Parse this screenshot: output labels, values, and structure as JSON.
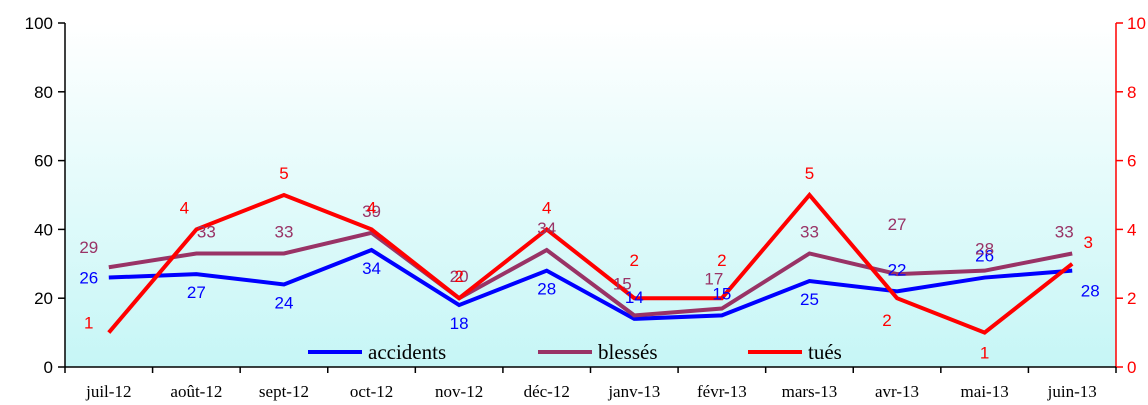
{
  "chart_data": {
    "type": "line",
    "categories": [
      "juil-12",
      "août-12",
      "sept-12",
      "oct-12",
      "nov-12",
      "déc-12",
      "janv-13",
      "févr-13",
      "mars-13",
      "avr-13",
      "mai-13",
      "juin-13"
    ],
    "y_left": {
      "min": 0,
      "max": 100,
      "ticks": [
        "0",
        "20",
        "40",
        "60",
        "80",
        "100"
      ]
    },
    "y_right": {
      "min": 0,
      "max": 10,
      "ticks": [
        "0",
        "2",
        "4",
        "6",
        "8",
        "10"
      ]
    },
    "series": [
      {
        "name": "accidents",
        "axis": "left",
        "color": "#0000ff",
        "values": [
          26,
          27,
          24,
          34,
          18,
          28,
          14,
          15,
          25,
          22,
          26,
          28
        ],
        "labels": [
          "26",
          "27",
          "24",
          "34",
          "18",
          "28",
          "14",
          "15",
          "25",
          "22",
          "26",
          "28"
        ]
      },
      {
        "name": "blessés",
        "axis": "left",
        "color": "#993366",
        "values": [
          29,
          33,
          33,
          39,
          20,
          34,
          15,
          17,
          33,
          27,
          28,
          33
        ],
        "labels": [
          "29",
          "33",
          "33",
          "39",
          "20",
          "34",
          "15",
          "17",
          "33",
          "27",
          "28",
          "33"
        ]
      },
      {
        "name": "tués",
        "axis": "right",
        "color": "#ff0000",
        "values": [
          1,
          4,
          5,
          4,
          2,
          4,
          2,
          2,
          5,
          2,
          1,
          3
        ],
        "labels": [
          "1",
          "4",
          "5",
          "4",
          "2",
          "4",
          "2",
          "2",
          "5",
          "2",
          "1",
          "3"
        ]
      }
    ],
    "legend": "bottom-center (inside plot)",
    "grid": false,
    "background": "gradient white to light cyan",
    "colors": {
      "left_axis": "#000000",
      "right_axis": "#ff0000"
    }
  }
}
